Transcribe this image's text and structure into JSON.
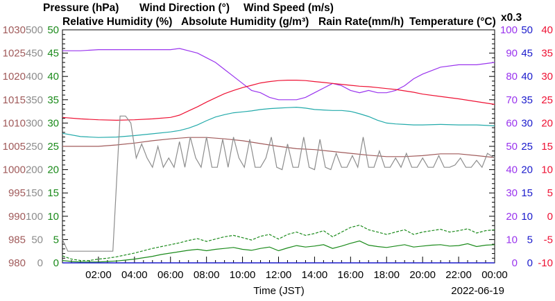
{
  "header": {
    "row1": [
      {
        "text": "Pressure (hPa)",
        "color": "#a05a5a"
      },
      {
        "text": "Wind Direction (°)",
        "color": "#8c8c8c"
      },
      {
        "text": "Wind Speed (m/s)",
        "color": "#1a8a1a"
      }
    ],
    "row2": [
      {
        "text": "Relative Humidity (%)",
        "color": "#9933ee"
      },
      {
        "text": "Absolute Humidity (g/m³)",
        "color": "#22aaaa"
      },
      {
        "text": "Rain Rate(mm/h)",
        "color": "#1a1acc"
      },
      {
        "text": "Temperature (°C)",
        "color": "#ee1133"
      }
    ],
    "scale_note": "x0.3"
  },
  "chart_data": {
    "type": "line",
    "date": "2022-06-19",
    "xlabel": "Time (JST)",
    "x_ticks": [
      "02:00",
      "04:00",
      "06:00",
      "08:00",
      "10:00",
      "12:00",
      "14:00",
      "16:00",
      "18:00",
      "20:00",
      "22:00",
      "00:00"
    ],
    "x_range_hours": [
      0,
      24
    ],
    "axes": {
      "pressure": {
        "label": "Pressure (hPa)",
        "color": "#a05a5a",
        "ticks": [
          "980",
          "985",
          "990",
          "995",
          "1000",
          "1005",
          "1010",
          "1015",
          "1020",
          "1025",
          "1030"
        ],
        "range": [
          980,
          1030
        ]
      },
      "wind_direction": {
        "label": "Wind Direction (°)",
        "color": "#8c8c8c",
        "ticks": [
          "0",
          "50",
          "100",
          "150",
          "200",
          "250",
          "300",
          "350",
          "400",
          "450",
          "500"
        ],
        "range": [
          0,
          500
        ]
      },
      "wind_speed": {
        "label": "Wind Speed (m/s)",
        "color": "#1a8a1a",
        "ticks": [
          "0",
          "5",
          "10",
          "15",
          "20",
          "25",
          "30",
          "35",
          "40",
          "45",
          "50"
        ],
        "range": [
          0,
          50
        ]
      },
      "humidity": {
        "label": "Relative Humidity (%)",
        "color": "#9933ee",
        "ticks": [
          "0",
          "10",
          "20",
          "30",
          "40",
          "50",
          "60",
          "70",
          "80",
          "90",
          "100"
        ],
        "range": [
          0,
          100
        ]
      },
      "rain_rate": {
        "label": "Rain Rate(mm/h)",
        "color": "#1a1acc",
        "ticks": [
          "0",
          "5",
          "10",
          "15",
          "20",
          "25",
          "30",
          "35",
          "40",
          "45",
          "50"
        ],
        "range": [
          0,
          50
        ]
      },
      "temperature": {
        "label": "Temperature (°C)",
        "color": "#ee1133",
        "ticks": [
          "-10",
          "-5",
          "0",
          "5",
          "10",
          "15",
          "20",
          "25",
          "30",
          "35",
          "40"
        ],
        "range": [
          -10,
          40
        ]
      }
    },
    "series": [
      {
        "name": "Relative Humidity (%)",
        "axis": "humidity",
        "color": "#9933ee",
        "x": [
          0,
          1,
          2,
          3,
          4,
          5,
          6,
          6.5,
          7,
          7.5,
          8,
          8.5,
          9,
          9.5,
          10,
          10.5,
          11,
          11.5,
          12,
          12.5,
          13,
          13.5,
          14,
          14.5,
          15,
          15.5,
          16,
          16.5,
          17,
          17.5,
          18,
          18.5,
          19,
          19.5,
          20,
          21,
          22,
          23,
          24
        ],
        "y": [
          91,
          91,
          91.5,
          91.5,
          91.5,
          91.5,
          91.5,
          92,
          91,
          90,
          88,
          86,
          83,
          80,
          77,
          74,
          73,
          71,
          70,
          70,
          70,
          71,
          73,
          75,
          77,
          76,
          74,
          73,
          74,
          73,
          73,
          74,
          76,
          79,
          81,
          84,
          85,
          85,
          86
        ]
      },
      {
        "name": "Temperature (°C)",
        "axis": "temperature",
        "color": "#ee1133",
        "x": [
          0,
          1,
          2,
          3,
          4,
          5,
          6,
          6.5,
          7,
          7.5,
          8,
          8.5,
          9,
          9.5,
          10,
          10.5,
          11,
          11.5,
          12,
          12.5,
          13,
          13.5,
          14,
          14.5,
          15,
          15.5,
          16,
          16.5,
          17,
          17.5,
          18,
          18.5,
          19,
          19.5,
          20,
          21,
          22,
          23,
          24
        ],
        "y": [
          21.2,
          20.9,
          20.7,
          20.6,
          20.7,
          20.9,
          21.2,
          21.7,
          22.6,
          23.5,
          24.5,
          25.4,
          26.3,
          27,
          27.6,
          28.1,
          28.6,
          28.9,
          29.1,
          29.2,
          29.2,
          29.1,
          28.9,
          28.7,
          28.5,
          28.3,
          28.1,
          27.9,
          27.8,
          27.6,
          27.4,
          27.2,
          26.9,
          26.6,
          26.2,
          25.7,
          25.2,
          24.6,
          24
        ]
      },
      {
        "name": "Absolute Humidity (g/m³)",
        "axis": "temperature",
        "color": "#22aaaa",
        "x": [
          0,
          1,
          2,
          3,
          4,
          5,
          6,
          6.5,
          7,
          7.5,
          8,
          8.5,
          9,
          9.5,
          10,
          10.5,
          11,
          11.5,
          12,
          12.5,
          13,
          13.5,
          14,
          14.5,
          15,
          15.5,
          16,
          16.5,
          17,
          17.5,
          18,
          18.5,
          19,
          19.5,
          20,
          21,
          22,
          23,
          24
        ],
        "y": [
          17.8,
          17.1,
          16.9,
          17,
          17.3,
          17.7,
          18.1,
          18.4,
          18.9,
          19.6,
          20.5,
          21.3,
          21.8,
          22.2,
          22.4,
          22.6,
          22.9,
          23.1,
          23.2,
          23.3,
          23.4,
          23.2,
          22.9,
          22.8,
          22.7,
          22.7,
          22.5,
          22,
          21.4,
          20.6,
          20,
          19.8,
          19.7,
          19.6,
          19.6,
          19.7,
          19.6,
          19.6,
          19.4
        ]
      },
      {
        "name": "Pressure (hPa)",
        "axis": "pressure",
        "color": "#a05a5a",
        "x": [
          0,
          1,
          2,
          3,
          4,
          5,
          6,
          7,
          8,
          9,
          10,
          11,
          12,
          13,
          14,
          15,
          16,
          17,
          18,
          19,
          20,
          21,
          22,
          23,
          24
        ],
        "y": [
          1005,
          1005,
          1005,
          1005.3,
          1005.7,
          1006.2,
          1006.6,
          1006.9,
          1006.9,
          1006.6,
          1006.2,
          1005.6,
          1005,
          1004.5,
          1004.3,
          1003.9,
          1003.5,
          1003.1,
          1002.8,
          1002.8,
          1003,
          1003.4,
          1003.4,
          1003,
          1002.6
        ]
      },
      {
        "name": "Wind Direction (°)",
        "axis": "wind_direction",
        "color": "#8c8c8c",
        "x": [
          0,
          0.3,
          0.6,
          2.8,
          3.2,
          3.5,
          3.8,
          4.1,
          4.4,
          4.7,
          5,
          5.3,
          5.6,
          5.9,
          6.2,
          6.5,
          6.8,
          7.1,
          7.4,
          7.7,
          8,
          8.3,
          8.6,
          8.9,
          9.2,
          9.5,
          9.8,
          10.1,
          10.4,
          10.7,
          11,
          11.3,
          11.6,
          11.9,
          12.2,
          12.5,
          12.8,
          13.1,
          13.4,
          13.7,
          14,
          14.3,
          14.6,
          14.9,
          15.2,
          15.5,
          15.8,
          16.1,
          16.4,
          16.7,
          17,
          17.3,
          17.6,
          17.9,
          18.2,
          18.5,
          18.8,
          19.1,
          19.4,
          19.7,
          20,
          20.3,
          20.6,
          20.9,
          21.2,
          21.5,
          21.8,
          22.1,
          22.4,
          22.7,
          23,
          23.3,
          23.6,
          24
        ],
        "y": [
          50,
          25,
          25,
          25,
          315,
          315,
          300,
          225,
          255,
          225,
          205,
          250,
          205,
          225,
          205,
          260,
          205,
          270,
          225,
          205,
          270,
          205,
          205,
          265,
          205,
          270,
          225,
          205,
          265,
          205,
          205,
          225,
          270,
          205,
          200,
          255,
          205,
          205,
          270,
          205,
          200,
          265,
          205,
          200,
          235,
          205,
          205,
          230,
          205,
          270,
          205,
          205,
          240,
          205,
          205,
          225,
          205,
          235,
          205,
          205,
          225,
          205,
          205,
          230,
          205,
          205,
          210,
          225,
          205,
          205,
          220,
          205,
          235,
          225
        ]
      },
      {
        "name": "Wind Speed (m/s)",
        "axis": "wind_speed",
        "color": "#1a8a1a",
        "x": [
          0,
          0.5,
          1,
          1.5,
          2,
          2.5,
          3,
          3.5,
          4,
          4.5,
          5,
          5.5,
          6,
          6.5,
          7,
          7.5,
          8,
          8.5,
          9,
          9.5,
          10,
          10.5,
          11,
          11.5,
          12,
          12.5,
          13,
          13.5,
          14,
          14.5,
          15,
          15.5,
          16,
          16.5,
          17,
          17.5,
          18,
          18.5,
          19,
          19.5,
          20,
          20.5,
          21,
          21.5,
          22,
          22.5,
          23,
          23.5,
          24
        ],
        "y": [
          0.5,
          0.3,
          0.2,
          0.2,
          0.2,
          0.3,
          0.4,
          0.6,
          0.8,
          1.1,
          1.4,
          1.8,
          2.1,
          2.4,
          2.7,
          2.9,
          2.6,
          2.9,
          3.1,
          3.3,
          2.9,
          2.7,
          3.1,
          3.4,
          2.6,
          3.2,
          3.7,
          3.4,
          3.6,
          3.9,
          3.1,
          3.6,
          4.2,
          4.7,
          3.8,
          3.5,
          3.3,
          3.6,
          3.9,
          3.4,
          3.6,
          3.8,
          3.9,
          3.6,
          3.7,
          4.1,
          3.5,
          3.8,
          3.9
        ]
      },
      {
        "name": "Wind Speed Max (m/s)",
        "axis": "wind_speed",
        "color": "#1a8a1a",
        "x": [
          0,
          0.5,
          1,
          1.5,
          2,
          2.5,
          3,
          3.5,
          4,
          4.5,
          5,
          5.5,
          6,
          6.5,
          7,
          7.5,
          8,
          8.5,
          9,
          9.5,
          10,
          10.5,
          11,
          11.5,
          12,
          12.5,
          13,
          13.5,
          14,
          14.5,
          15,
          15.5,
          16,
          16.5,
          17,
          17.5,
          18,
          18.5,
          19,
          19.5,
          20,
          20.5,
          21,
          21.5,
          22,
          22.5,
          23,
          23.5,
          24
        ],
        "y": [
          1.5,
          0.8,
          0.5,
          0.5,
          0.8,
          1,
          1.3,
          1.7,
          2.1,
          2.6,
          3.1,
          3.5,
          3.9,
          4.3,
          4.8,
          5.2,
          4.6,
          5.1,
          5.6,
          5.9,
          5.4,
          4.9,
          5.7,
          6.1,
          5.1,
          6.1,
          6.6,
          5.9,
          6.3,
          6.9,
          5.6,
          6.6,
          7.6,
          8.1,
          7.1,
          6.6,
          6.1,
          6.6,
          7.1,
          6.1,
          6.6,
          6.9,
          7.2,
          6.6,
          6.9,
          7.3,
          6.4,
          6.9,
          7.1
        ]
      }
    ],
    "grid": false,
    "legend": "top"
  }
}
